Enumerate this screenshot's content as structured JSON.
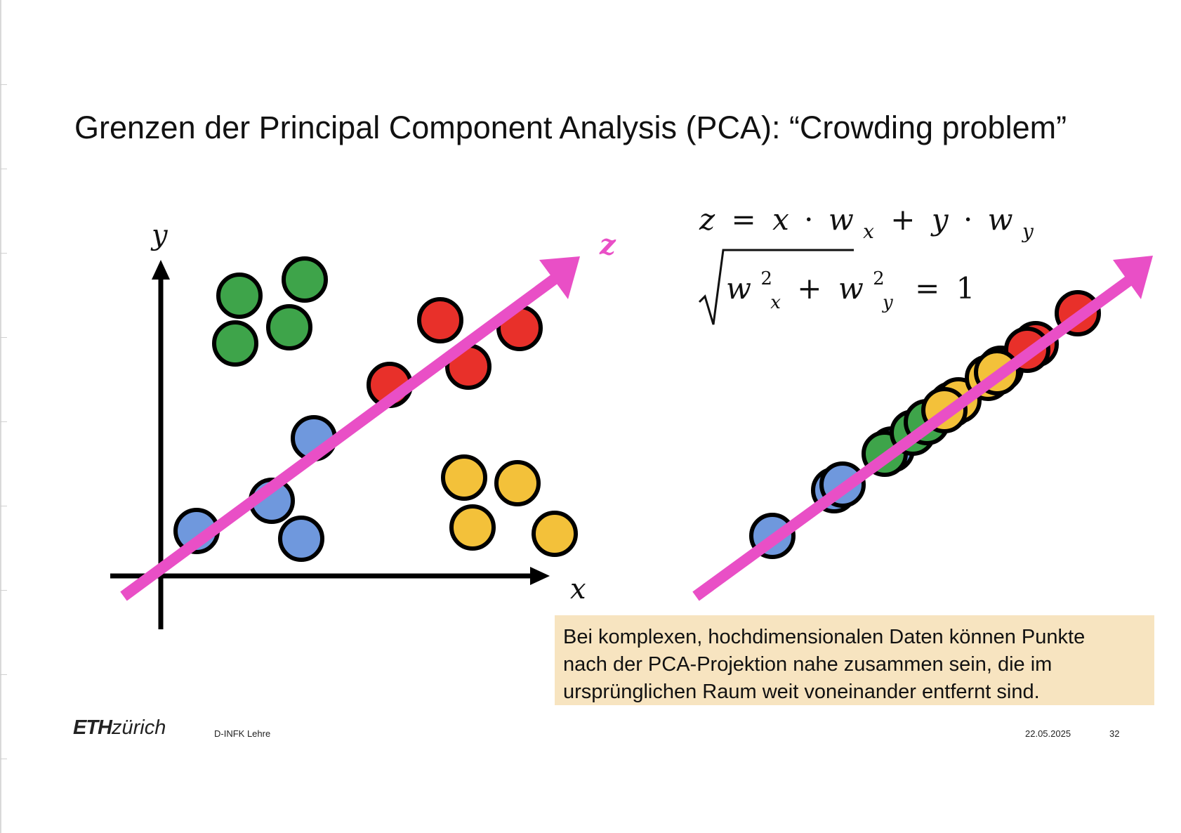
{
  "slide": {
    "title": "Grenzen der Principal Component Analysis (PCA): “Crowding problem”",
    "axis_x_label": "x",
    "axis_y_label": "y",
    "axis_z_label": "z",
    "formula": {
      "line1": {
        "z": "z",
        "eq": "=",
        "x": "x",
        "dot1": "·",
        "w1": "w",
        "sub1": "x",
        "plus": "+",
        "y": "y",
        "dot2": "·",
        "w2": "w",
        "sub2": "y"
      },
      "line2": {
        "w1": "w",
        "sup1": "2",
        "sub1": "x",
        "plus": "+",
        "w2": "w",
        "sup2": "2",
        "sub2": "y",
        "eq": "=",
        "one": "1"
      }
    },
    "note": [
      "Bei komplexen, hochdimensionalen Daten können Punkte",
      "nach der PCA-Projektion nahe zusammen sein, die im",
      "ursprünglichen Raum weit voneinander entfernt sind."
    ]
  },
  "colors": {
    "green": "#3ea44a",
    "red": "#e8302a",
    "blue": "#6f98dd",
    "yellow": "#f3c13a",
    "magenta": "#e94fc6",
    "note_bg": "#f7e4c0"
  },
  "footer": {
    "logo_eth": "ETH",
    "logo_zurich": "zürich",
    "department": "D-INFK Lehre",
    "date": "22.05.2025",
    "page": "32"
  }
}
